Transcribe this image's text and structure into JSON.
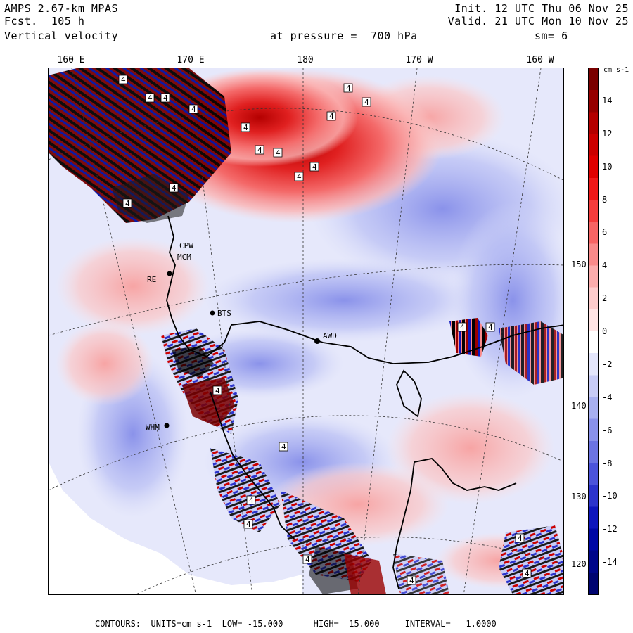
{
  "header": {
    "model": "AMPS 2.67-km MPAS",
    "forecast": "Fcst.  105 h",
    "field": "Vertical velocity",
    "init": "Init. 12 UTC Thu 06 Nov 25",
    "valid": "Valid. 21 UTC Mon 10 Nov 25",
    "pressure": "at pressure =  700 hPa",
    "smoothing": "sm= 6"
  },
  "longitude_labels": [
    "160 E",
    "170 E",
    "180",
    "170 W",
    "160 W"
  ],
  "latitude_labels": [
    "150 W",
    "140 W",
    "130 W",
    "120 W"
  ],
  "stations": [
    "CPW",
    "MCM",
    "RE",
    "BTS",
    "AWD",
    "WHM"
  ],
  "contour_label": "4",
  "colorbar": {
    "unit": "cm s-1",
    "ticks": [
      "14",
      "12",
      "10",
      "8",
      "6",
      "4",
      "2",
      "0",
      "-2",
      "-4",
      "-6",
      "-8",
      "-10",
      "-12",
      "-14"
    ],
    "colors": [
      "#7a0000",
      "#960000",
      "#b40000",
      "#cc0000",
      "#e00000",
      "#f01818",
      "#f53c3c",
      "#f76464",
      "#f98a8a",
      "#fbacac",
      "#fdcccc",
      "#ffe4e4",
      "#ffffff",
      "#e4e6fb",
      "#c8ccf6",
      "#a8b0f0",
      "#8a92ea",
      "#6c74e2",
      "#4c54da",
      "#2c34cc",
      "#0e16bc",
      "#0008a4",
      "#00068a",
      "#000470"
    ]
  },
  "footer": "CONTOURS:  UNITS=cm s-1  LOW= -15.000      HIGH=  15.000     INTERVAL=   1.0000"
}
